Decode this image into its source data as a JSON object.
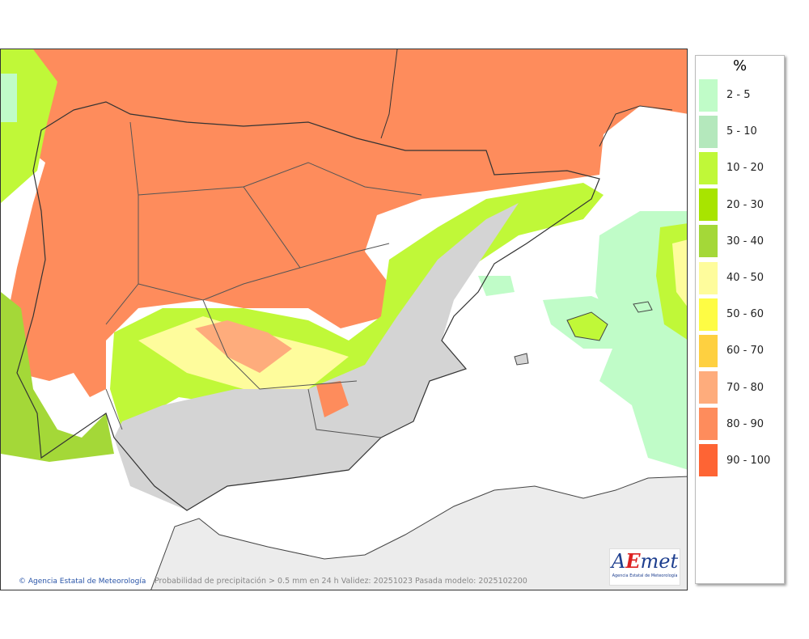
{
  "map": {
    "credit": "Agencia Estatal de Meteorología",
    "caption": "Probabilidad de precipitación > 0.5 mm en 24 h Validez: 20251023 Pasada modelo: 2025102200",
    "logo_text": "AEmet",
    "logo_subtext": "Agencia Estatal de Meteorología"
  },
  "legend": {
    "unit": "%",
    "items": [
      {
        "label": "2 - 5",
        "color": "#c0fcc8"
      },
      {
        "label": "5 - 10",
        "color": "#b4e8bc"
      },
      {
        "label": "10 - 20",
        "color": "#c0f838"
      },
      {
        "label": "20 - 30",
        "color": "#a8e400"
      },
      {
        "label": "30 - 40",
        "color": "#a4d838"
      },
      {
        "label": "40 - 50",
        "color": "#fefc9c"
      },
      {
        "label": "50 - 60",
        "color": "#fefc44"
      },
      {
        "label": "60 - 70",
        "color": "#fed040"
      },
      {
        "label": "70 - 80",
        "color": "#feac7c"
      },
      {
        "label": "80 - 90",
        "color": "#fe8c5c"
      },
      {
        "label": "90 - 100",
        "color": "#fe6434"
      }
    ]
  }
}
